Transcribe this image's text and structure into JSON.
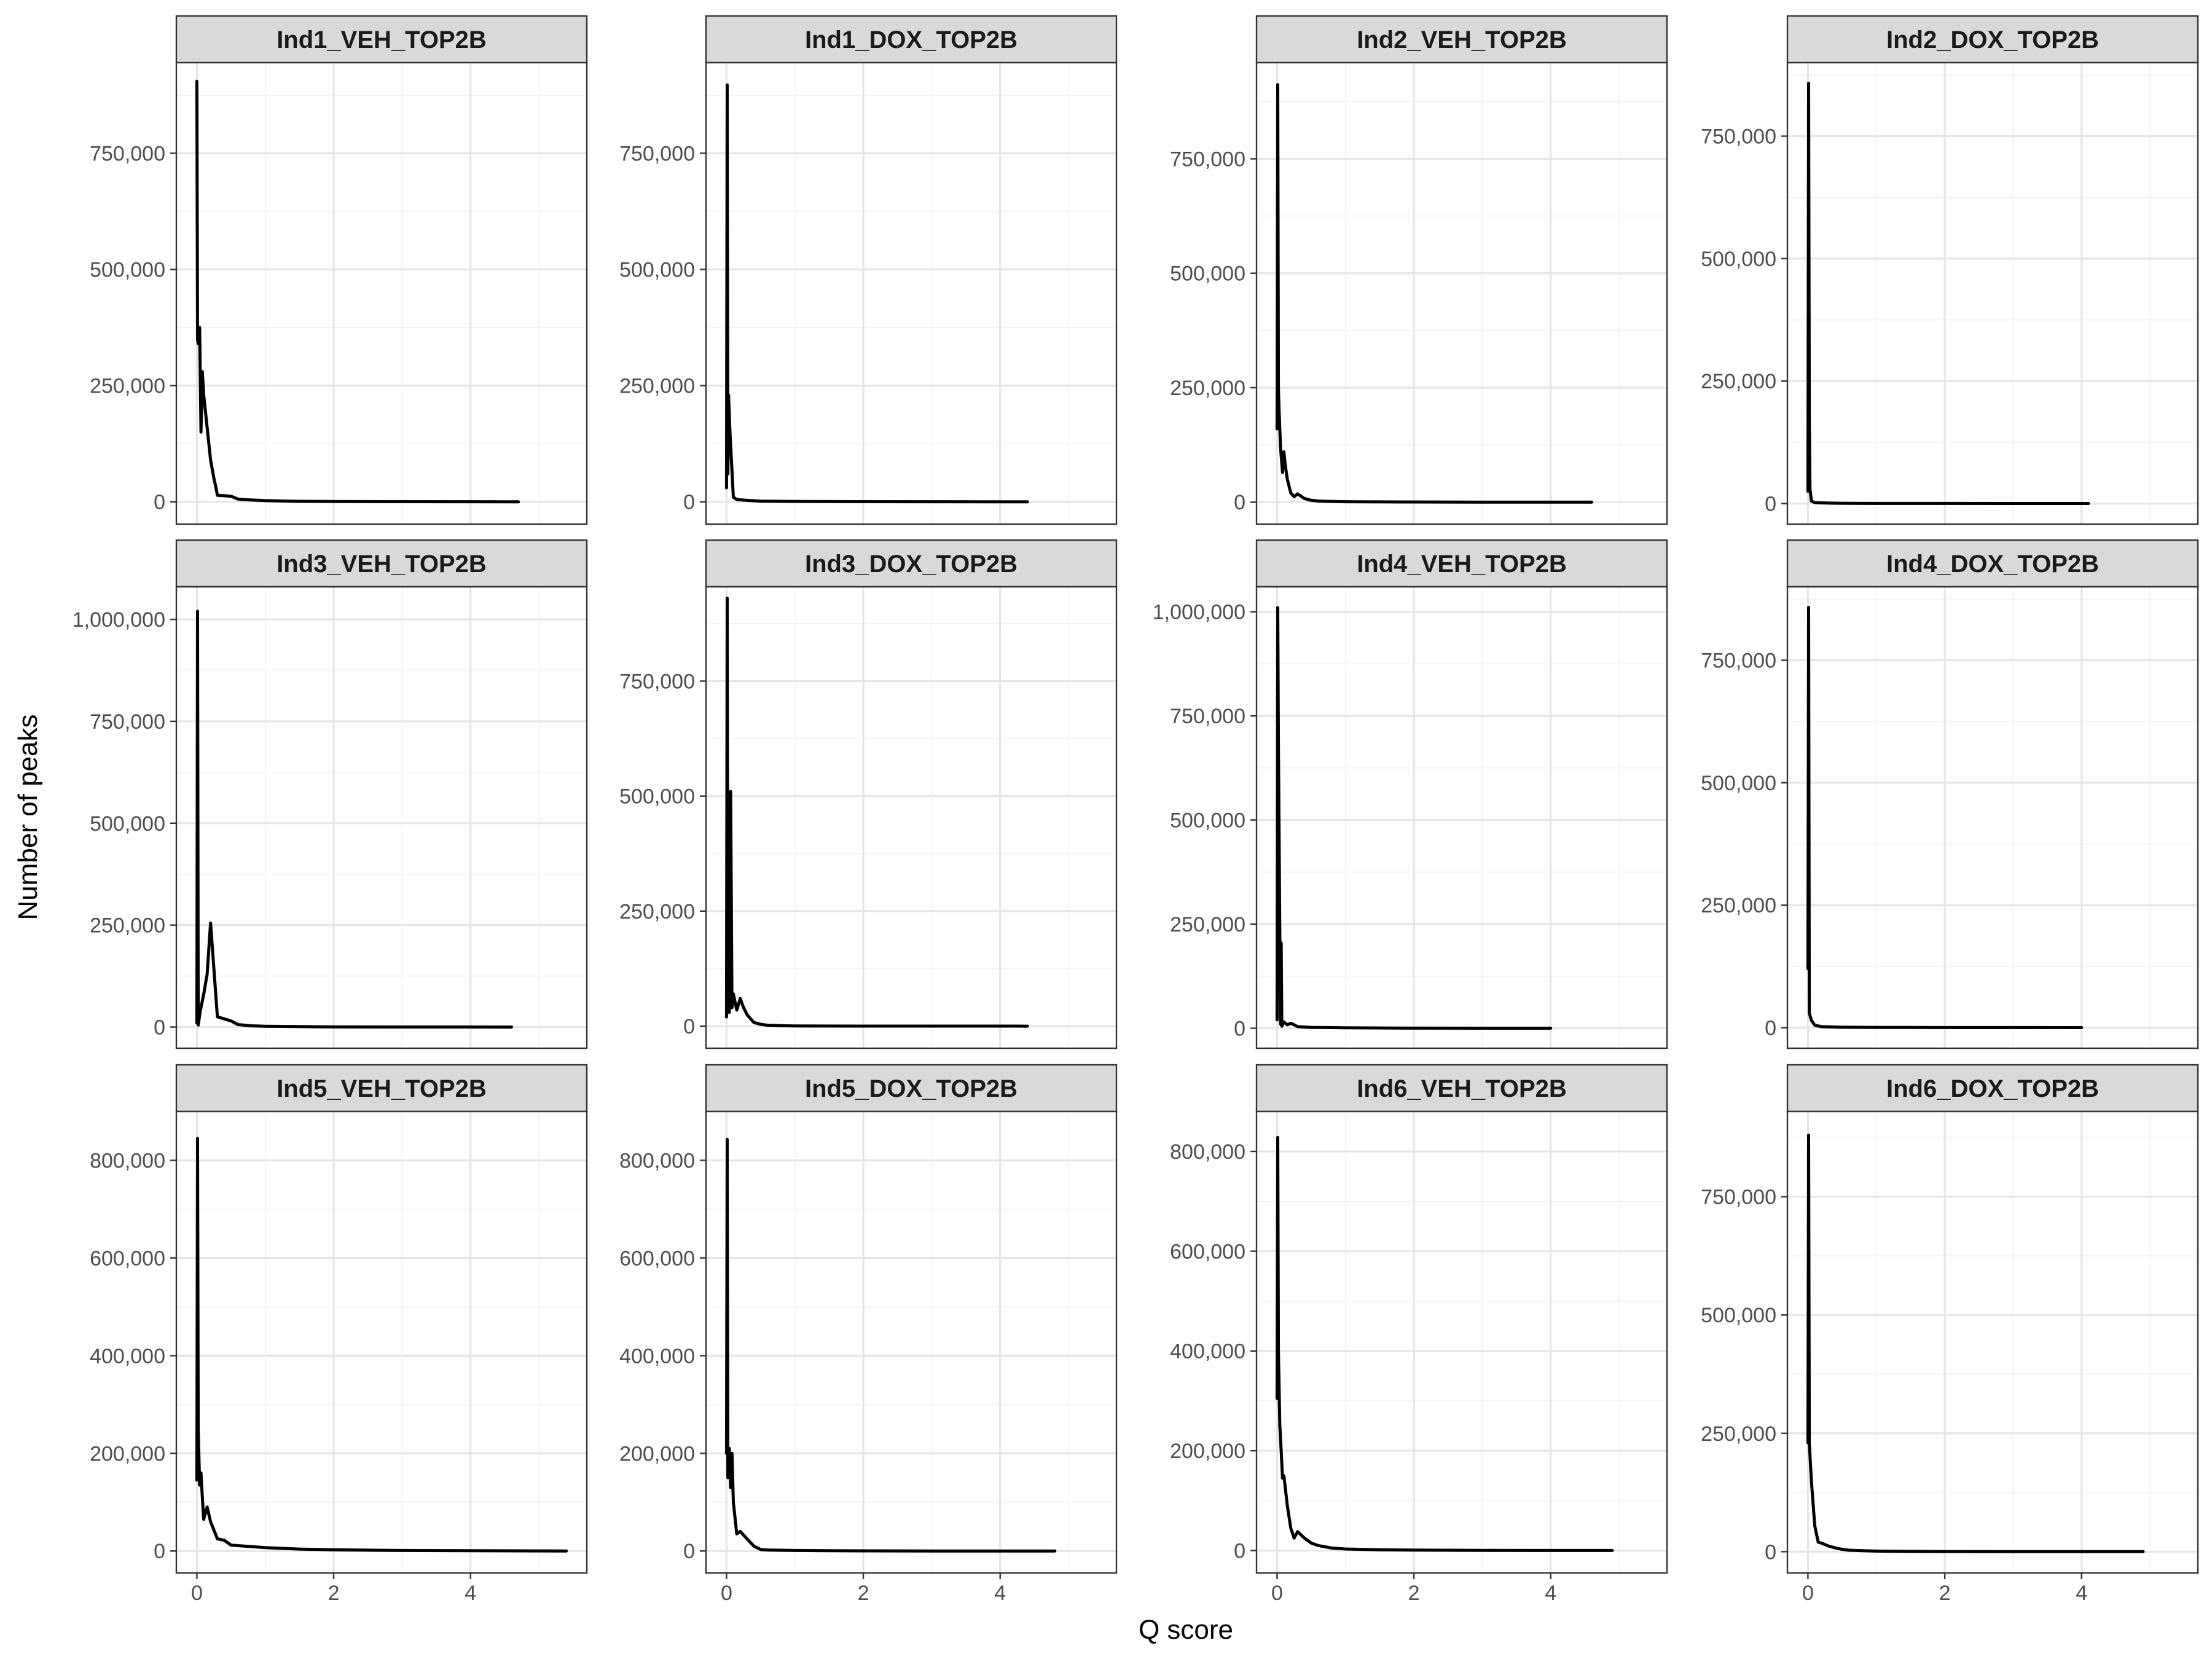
{
  "chart_data": {
    "type": "line",
    "layout": "facet grid, 3 rows x 4 columns, free y scales, shared x scale",
    "xlabel": "Q score",
    "ylabel": "Number of peaks",
    "xlim": [
      -0.3,
      5.7
    ],
    "x_ticks": [
      0,
      2,
      4
    ],
    "grid": true,
    "legend": "none",
    "line_color": "#000000",
    "strip_fill": "#d9d9d9",
    "panels": [
      {
        "title": "Ind1_VEH_TOP2B",
        "ylim": [
          -48000,
          945000
        ],
        "y_ticks": [
          0,
          250000,
          500000,
          750000
        ],
        "x": [
          0,
          0.01,
          0.02,
          0.04,
          0.06,
          0.08,
          0.1,
          0.15,
          0.2,
          0.25,
          0.28,
          0.3,
          0.4,
          0.5,
          0.6,
          0.8,
          1,
          1.5,
          2,
          3,
          4,
          4.7
        ],
        "y": [
          905000,
          350000,
          340000,
          375000,
          150000,
          280000,
          230000,
          160000,
          90000,
          50000,
          30000,
          14000,
          13000,
          12000,
          6000,
          4000,
          2500,
          1000,
          500,
          200,
          80,
          30
        ]
      },
      {
        "title": "Ind1_DOX_TOP2B",
        "ylim": [
          -48000,
          945000
        ],
        "y_ticks": [
          0,
          250000,
          500000,
          750000
        ],
        "x": [
          0,
          0.01,
          0.02,
          0.03,
          0.05,
          0.1,
          0.15,
          0.3,
          0.5,
          1,
          2,
          3,
          4,
          4.4
        ],
        "y": [
          30000,
          897000,
          60000,
          230000,
          150000,
          10000,
          5000,
          3000,
          1500,
          800,
          300,
          100,
          50,
          20
        ]
      },
      {
        "title": "Ind2_VEH_TOP2B",
        "ylim": [
          -48000,
          960000
        ],
        "y_ticks": [
          0,
          250000,
          500000,
          750000
        ],
        "x": [
          0,
          0.01,
          0.02,
          0.03,
          0.05,
          0.08,
          0.1,
          0.12,
          0.15,
          0.2,
          0.25,
          0.3,
          0.4,
          0.5,
          0.6,
          0.8,
          1,
          2,
          3,
          4,
          4.6
        ],
        "y": [
          160000,
          912000,
          250000,
          200000,
          120000,
          65000,
          110000,
          80000,
          50000,
          20000,
          12000,
          18000,
          8000,
          4000,
          2500,
          1500,
          800,
          300,
          100,
          50,
          20
        ]
      },
      {
        "title": "Ind2_DOX_TOP2B",
        "ylim": [
          -42000,
          900000
        ],
        "y_ticks": [
          0,
          250000,
          500000,
          750000
        ],
        "x": [
          0,
          0.01,
          0.02,
          0.03,
          0.05,
          0.1,
          0.3,
          0.5,
          1,
          2,
          3,
          4,
          4.1
        ],
        "y": [
          25000,
          858000,
          180000,
          30000,
          5000,
          2000,
          1000,
          500,
          200,
          100,
          50,
          20,
          10
        ]
      },
      {
        "title": "Ind3_VEH_TOP2B",
        "ylim": [
          -52000,
          1080000
        ],
        "y_ticks": [
          0,
          250000,
          500000,
          750000,
          1000000
        ],
        "x": [
          0,
          0.01,
          0.02,
          0.05,
          0.1,
          0.15,
          0.2,
          0.3,
          0.4,
          0.5,
          0.6,
          0.8,
          1,
          1.5,
          2,
          3,
          4,
          4.6
        ],
        "y": [
          10000,
          1020000,
          5000,
          40000,
          80000,
          130000,
          255000,
          25000,
          20000,
          15000,
          6000,
          3000,
          2000,
          1000,
          500,
          200,
          100,
          30
        ]
      },
      {
        "title": "Ind3_DOX_TOP2B",
        "ylim": [
          -48000,
          955000
        ],
        "y_ticks": [
          0,
          250000,
          500000,
          750000
        ],
        "x": [
          0,
          0.01,
          0.02,
          0.04,
          0.06,
          0.08,
          0.1,
          0.15,
          0.2,
          0.25,
          0.3,
          0.4,
          0.5,
          0.6,
          0.8,
          1,
          1.5,
          2,
          3,
          4,
          4.4
        ],
        "y": [
          20000,
          930000,
          80000,
          30000,
          510000,
          40000,
          70000,
          35000,
          60000,
          40000,
          25000,
          8000,
          4000,
          2000,
          1000,
          500,
          200,
          100,
          50,
          20,
          10
        ]
      },
      {
        "title": "Ind4_VEH_TOP2B",
        "ylim": [
          -48000,
          1060000
        ],
        "y_ticks": [
          0,
          250000,
          500000,
          750000,
          1000000
        ],
        "x": [
          0,
          0.01,
          0.02,
          0.05,
          0.06,
          0.07,
          0.1,
          0.15,
          0.2,
          0.3,
          0.5,
          1,
          2,
          3,
          4
        ],
        "y": [
          20000,
          1010000,
          680000,
          10000,
          205000,
          5000,
          15000,
          8000,
          12000,
          4000,
          2000,
          1000,
          300,
          100,
          50
        ]
      },
      {
        "title": "Ind4_DOX_TOP2B",
        "ylim": [
          -42000,
          900000
        ],
        "y_ticks": [
          0,
          250000,
          500000,
          750000
        ],
        "x": [
          0,
          0.01,
          0.02,
          0.05,
          0.1,
          0.2,
          0.5,
          1,
          2,
          3,
          4
        ],
        "y": [
          120000,
          858000,
          30000,
          15000,
          5000,
          2000,
          1000,
          500,
          200,
          100,
          50
        ]
      },
      {
        "title": "Ind5_VEH_TOP2B",
        "ylim": [
          -45000,
          900000
        ],
        "y_ticks": [
          0,
          200000,
          400000,
          600000,
          800000
        ],
        "x": [
          0,
          0.01,
          0.02,
          0.04,
          0.06,
          0.08,
          0.1,
          0.15,
          0.2,
          0.3,
          0.4,
          0.5,
          0.6,
          0.8,
          1,
          1.5,
          2,
          3,
          4,
          5,
          5.4
        ],
        "y": [
          145000,
          845000,
          250000,
          135000,
          160000,
          110000,
          65000,
          90000,
          60000,
          25000,
          22000,
          12000,
          11000,
          9000,
          7000,
          4000,
          2500,
          1000,
          500,
          200,
          50
        ]
      },
      {
        "title": "Ind5_DOX_TOP2B",
        "ylim": [
          -45000,
          900000
        ],
        "y_ticks": [
          0,
          200000,
          400000,
          600000,
          800000
        ],
        "x": [
          0,
          0.01,
          0.02,
          0.04,
          0.06,
          0.08,
          0.1,
          0.15,
          0.2,
          0.3,
          0.4,
          0.5,
          0.6,
          0.8,
          1,
          1.5,
          2,
          3,
          4,
          4.8
        ],
        "y": [
          200000,
          843000,
          150000,
          210000,
          130000,
          200000,
          100000,
          35000,
          40000,
          25000,
          10000,
          3000,
          2000,
          1500,
          1000,
          500,
          300,
          100,
          50,
          20
        ]
      },
      {
        "title": "Ind6_VEH_TOP2B",
        "ylim": [
          -45000,
          880000
        ],
        "y_ticks": [
          0,
          200000,
          400000,
          600000,
          800000
        ],
        "x": [
          0,
          0.01,
          0.02,
          0.04,
          0.06,
          0.08,
          0.1,
          0.15,
          0.2,
          0.25,
          0.3,
          0.4,
          0.5,
          0.6,
          0.8,
          1,
          1.5,
          2,
          3,
          4,
          4.9
        ],
        "y": [
          305000,
          828000,
          400000,
          250000,
          200000,
          145000,
          150000,
          90000,
          45000,
          25000,
          38000,
          25000,
          15000,
          10000,
          5000,
          3000,
          1500,
          800,
          300,
          100,
          30
        ]
      },
      {
        "title": "Ind6_DOX_TOP2B",
        "ylim": [
          -45000,
          930000
        ],
        "y_ticks": [
          0,
          250000,
          500000,
          750000
        ],
        "x": [
          0,
          0.01,
          0.02,
          0.05,
          0.1,
          0.15,
          0.2,
          0.3,
          0.4,
          0.5,
          0.6,
          0.8,
          1,
          1.5,
          2,
          3,
          4,
          4.9
        ],
        "y": [
          230000,
          880000,
          230000,
          150000,
          55000,
          20000,
          18000,
          12000,
          8000,
          5000,
          3000,
          2000,
          1200,
          600,
          300,
          100,
          50,
          20
        ]
      }
    ]
  }
}
